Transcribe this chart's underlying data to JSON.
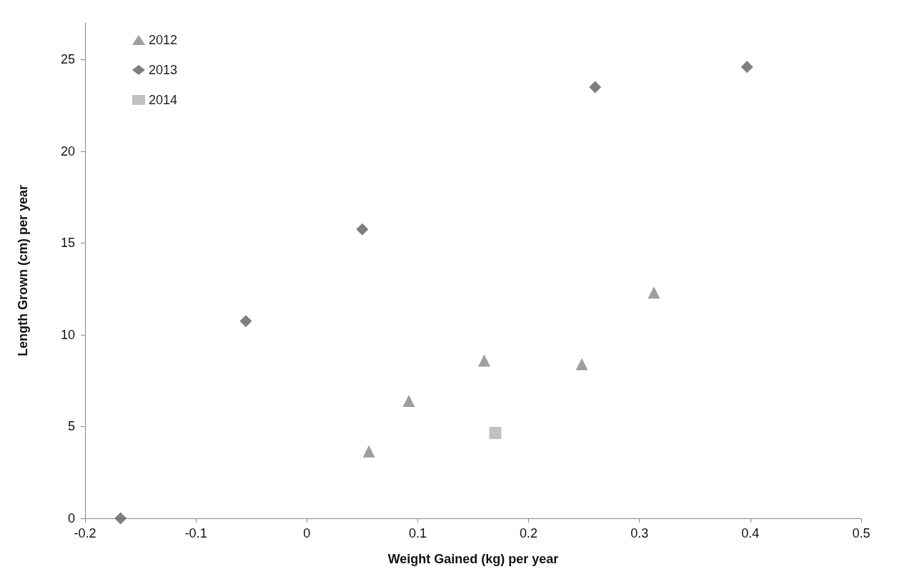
{
  "chart_data": {
    "type": "scatter",
    "xlabel": "Weight Gained (kg) per year",
    "ylabel": "Length Grown (cm) per year",
    "xlim": [
      -0.2,
      0.5
    ],
    "xticks": [
      -0.2,
      -0.1,
      0,
      0.1,
      0.2,
      0.3,
      0.4,
      0.5
    ],
    "ylim": [
      0,
      27
    ],
    "yticks": [
      0,
      5,
      10,
      15,
      20,
      25
    ],
    "grid": false,
    "legend": "top left",
    "series": [
      {
        "name": "2012",
        "color": "#868686",
        "marker": "triangle",
        "x": [
          0.056,
          0.092,
          0.16,
          0.248,
          0.313
        ],
        "values": [
          3.65,
          6.4,
          8.6,
          8.4,
          12.3
        ]
      },
      {
        "name": "2013",
        "color": "#5f5f5f",
        "marker": "diamond",
        "x": [
          -0.168,
          -0.055,
          0.05,
          0.26,
          0.397
        ],
        "values": [
          0,
          10.75,
          15.75,
          23.5,
          24.6
        ]
      },
      {
        "name": "2014",
        "color": "#b2b2b2",
        "marker": "square",
        "x": [
          0.17
        ],
        "values": [
          4.65
        ]
      }
    ]
  }
}
